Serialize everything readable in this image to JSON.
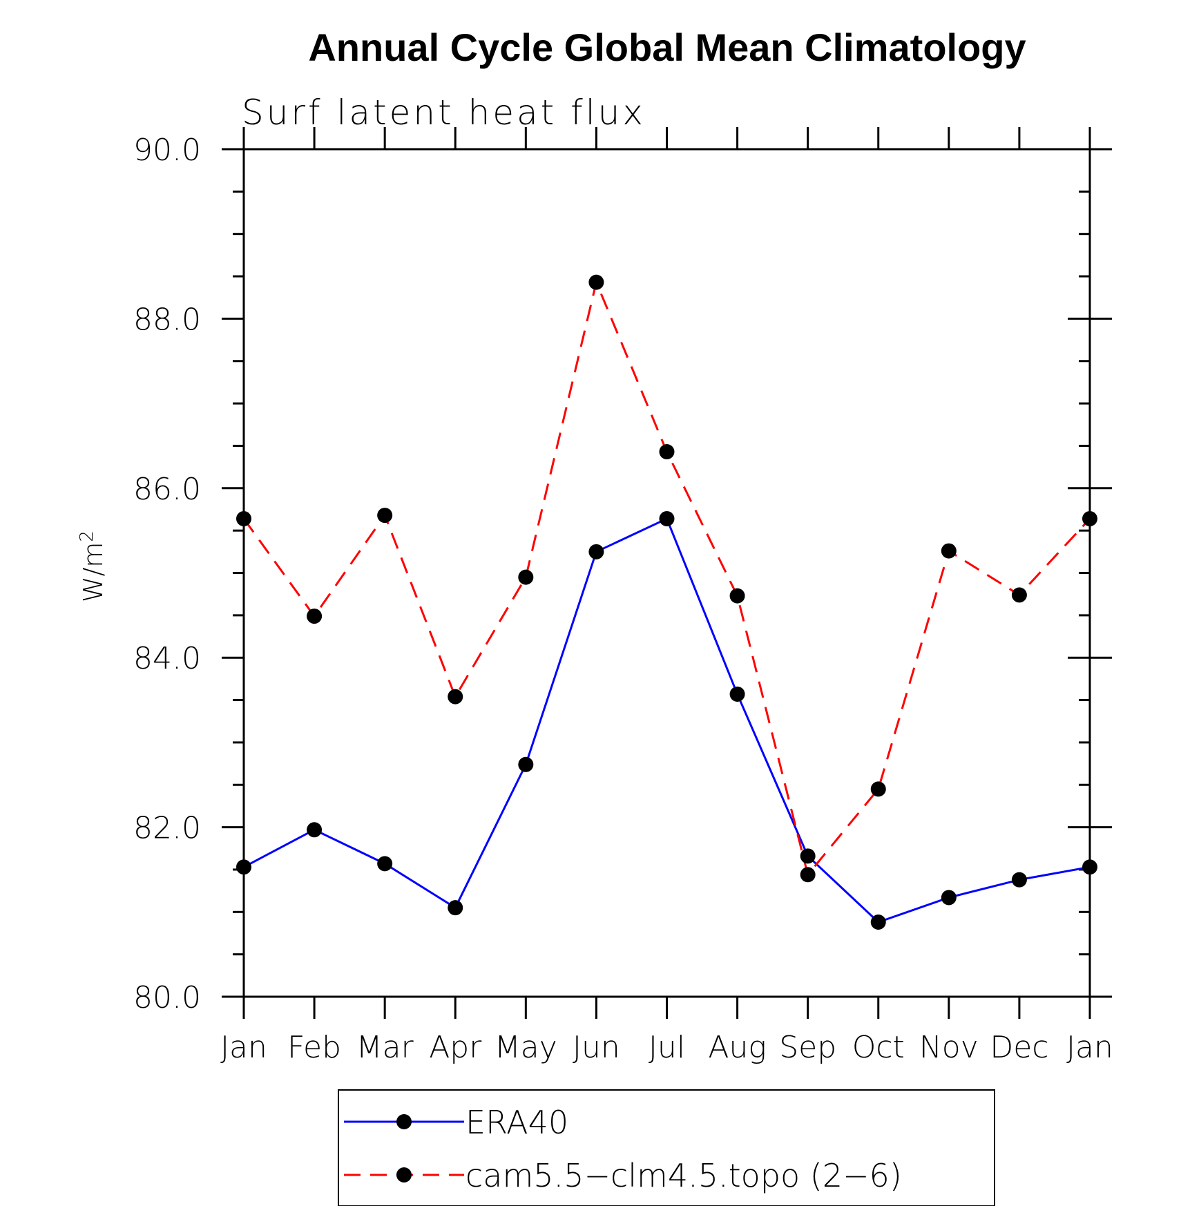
{
  "chart_data": {
    "type": "line",
    "title": "Annual Cycle Global Mean Climatology",
    "subtitle": "Surf latent heat flux",
    "ylabel": "W/m",
    "ylabel_superscript": "2",
    "xlabel": "",
    "categories": [
      "Jan",
      "Feb",
      "Mar",
      "Apr",
      "May",
      "Jun",
      "Jul",
      "Aug",
      "Sep",
      "Oct",
      "Nov",
      "Dec",
      "Jan"
    ],
    "ylim": [
      80.0,
      90.0
    ],
    "yticks": [
      "80.0",
      "82.0",
      "84.0",
      "86.0",
      "88.0",
      "90.0"
    ],
    "grid": false,
    "legend_position": "bottom",
    "series": [
      {
        "name": "ERA40",
        "color": "#0000ff",
        "dash": "solid",
        "marker": "filled-circle",
        "values": [
          81.53,
          81.97,
          81.57,
          81.05,
          82.74,
          85.25,
          85.64,
          83.57,
          81.66,
          80.88,
          81.17,
          81.38,
          81.53
        ]
      },
      {
        "name": "cam5.5−clm4.5.topo (2−6)",
        "color": "#ff0000",
        "dash": "dashed",
        "marker": "filled-circle",
        "values": [
          85.64,
          84.49,
          85.68,
          83.54,
          84.95,
          88.43,
          86.43,
          84.73,
          81.44,
          82.45,
          85.26,
          84.74,
          85.64
        ]
      }
    ]
  }
}
